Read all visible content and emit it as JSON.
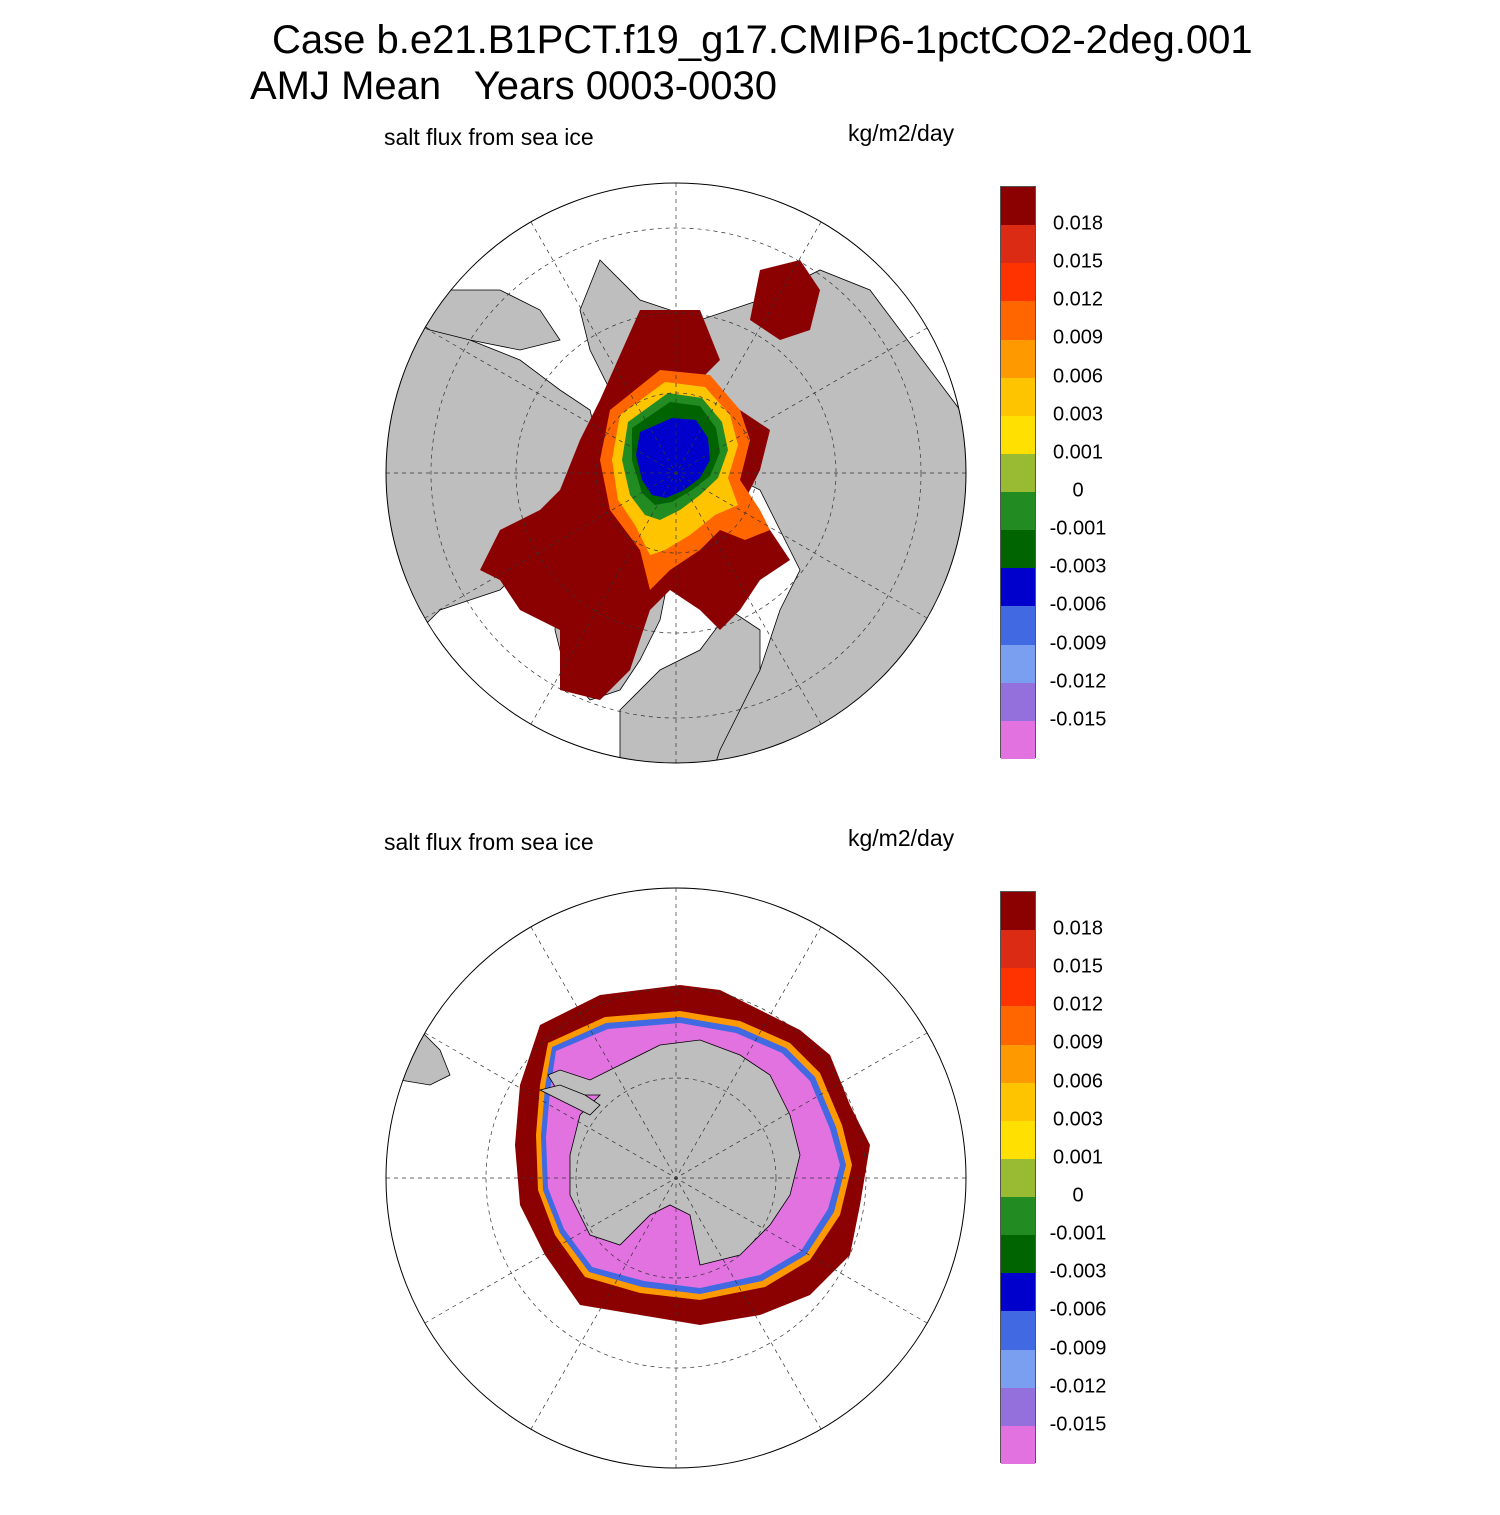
{
  "title_line1": "Case b.e21.B1PCT.f19_g17.CMIP6-1pctCO2-2deg.001",
  "title_line2": "AMJ Mean   Years 0003-0030",
  "chart_data": [
    {
      "type": "heatmap",
      "projection": "north-polar-stereographic",
      "left_label": "salt flux from sea ice",
      "right_label": "kg/m2/day",
      "colorbar": {
        "placement": "right",
        "tick_labels": [
          "0.018",
          "0.015",
          "0.012",
          "0.009",
          "0.006",
          "0.003",
          "0.001",
          "0",
          "-0.001",
          "-0.003",
          "-0.006",
          "-0.009",
          "-0.012",
          "-0.015"
        ],
        "colors": [
          "#8b0000",
          "#dc2b14",
          "#ff3300",
          "#ff6600",
          "#ff9900",
          "#ffc400",
          "#ffe000",
          "#99bb33",
          "#228b22",
          "#006400",
          "#0000cd",
          "#4169e1",
          "#7b9ff0",
          "#9370db",
          "#e272e0"
        ]
      },
      "grid": true,
      "land_color": "#bebebe"
    },
    {
      "type": "heatmap",
      "projection": "south-polar-stereographic",
      "left_label": "salt flux from sea ice",
      "right_label": "kg/m2/day",
      "colorbar": {
        "placement": "right",
        "tick_labels": [
          "0.018",
          "0.015",
          "0.012",
          "0.009",
          "0.006",
          "0.003",
          "0.001",
          "0",
          "-0.001",
          "-0.003",
          "-0.006",
          "-0.009",
          "-0.012",
          "-0.015"
        ],
        "colors": [
          "#8b0000",
          "#dc2b14",
          "#ff3300",
          "#ff6600",
          "#ff9900",
          "#ffc400",
          "#ffe000",
          "#99bb33",
          "#228b22",
          "#006400",
          "#0000cd",
          "#4169e1",
          "#7b9ff0",
          "#9370db",
          "#e272e0"
        ]
      },
      "grid": true,
      "land_color": "#bebebe"
    }
  ]
}
